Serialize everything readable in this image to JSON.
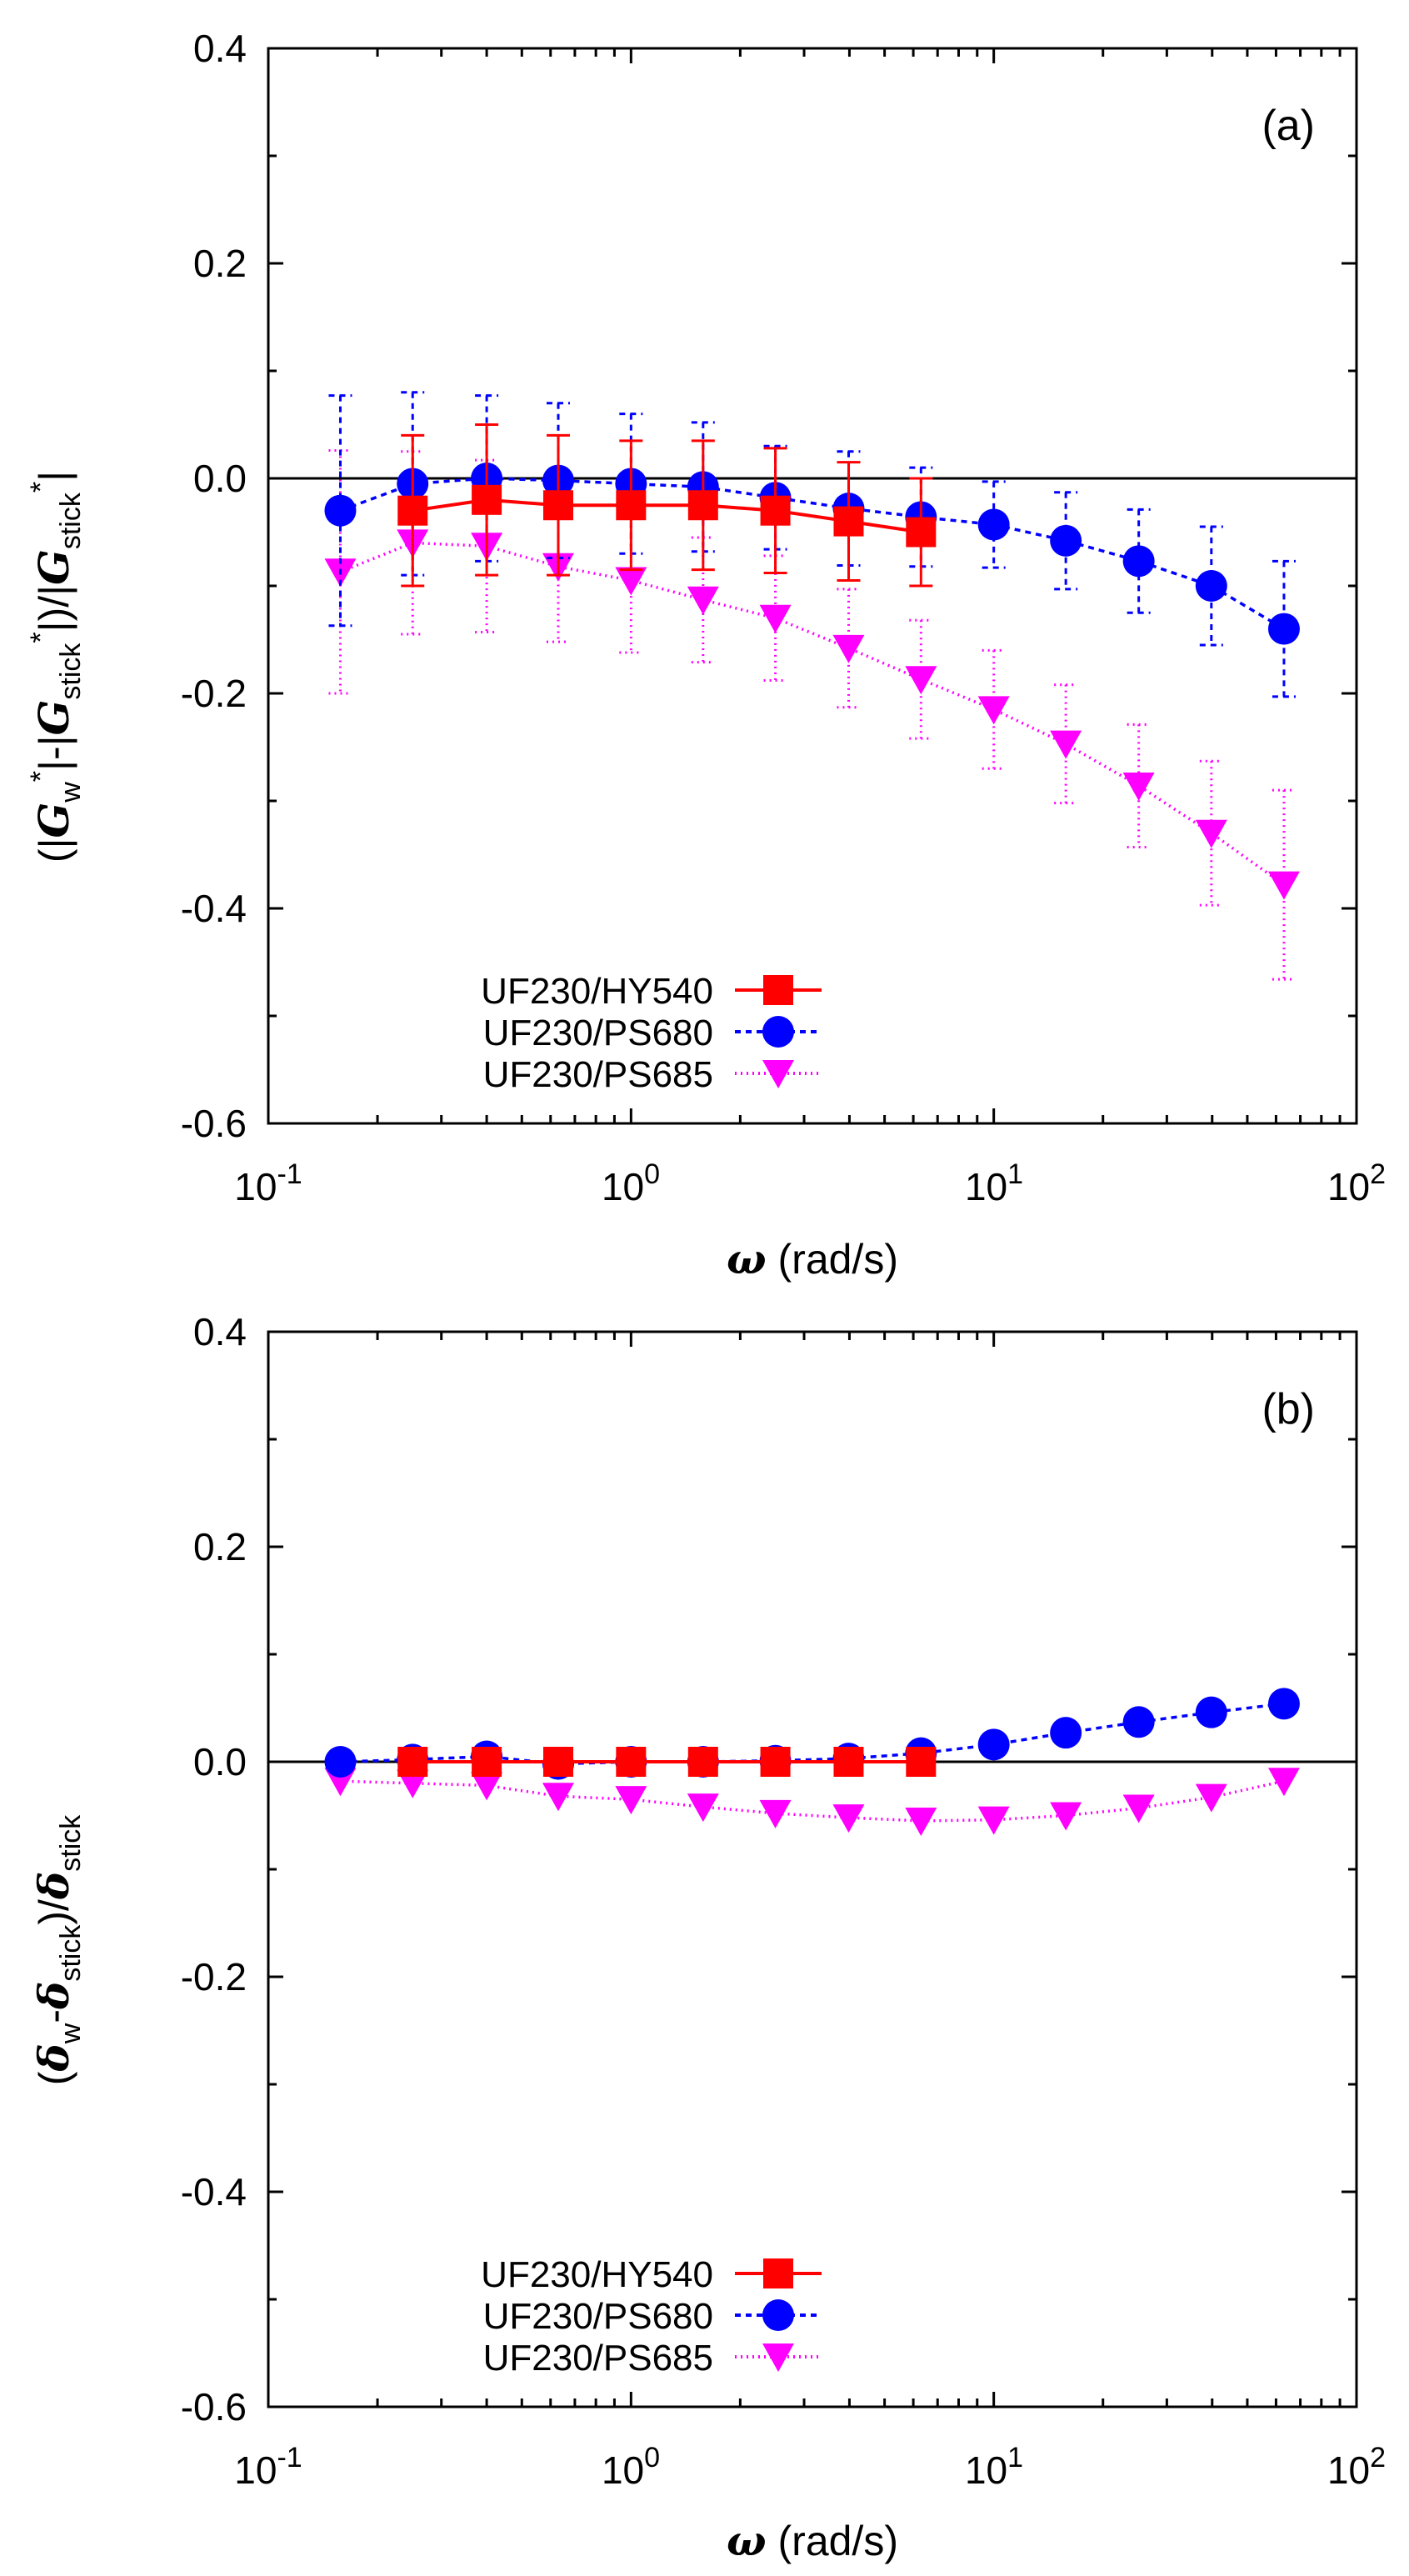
{
  "chart_data": [
    {
      "type": "scatter",
      "panel_label": "(a)",
      "xscale": "log",
      "xlim": [
        0.1,
        100
      ],
      "ylim": [
        -0.6,
        0.4
      ],
      "x_ticks": [
        "10",
        "10",
        "10",
        "10"
      ],
      "x_tick_exps": [
        "-1",
        "0",
        "1",
        "2"
      ],
      "y_ticks": [
        "0.4",
        "0.2",
        "0.0",
        "-0.2",
        "-0.4",
        "-0.6"
      ],
      "y_tick_values": [
        0.4,
        0.2,
        0.0,
        -0.2,
        -0.4,
        -0.6
      ],
      "xlabel_symbol": "ω",
      "xlabel_unit": " (rad/s)",
      "ylabel_parts": {
        "p1": "(|",
        "G1": "G",
        "sub1": "w",
        "sup1": "*",
        "p2": "|-|",
        "G2": "G",
        "sub2": "stick",
        "sup2": "*",
        "p3": "|)/|",
        "G3": "G",
        "sub3": "stick",
        "sup3": "*",
        "p4": "|"
      },
      "zero_line": 0,
      "legend_position": "bottom-left",
      "series": [
        {
          "name": "UF230/HY540",
          "color": "#ff0000",
          "marker": "square",
          "line": "solid",
          "x": [
            0.25,
            0.4,
            0.63,
            1.0,
            1.58,
            2.5,
            3.98,
            6.3
          ],
          "y": [
            -0.03,
            -0.02,
            -0.025,
            -0.025,
            -0.025,
            -0.03,
            -0.04,
            -0.05
          ],
          "err": [
            0.07,
            0.07,
            0.065,
            0.06,
            0.06,
            0.058,
            0.055,
            0.05
          ]
        },
        {
          "name": "UF230/PS680",
          "color": "#0000ff",
          "marker": "circle",
          "line": "dashed",
          "x": [
            0.158,
            0.25,
            0.4,
            0.63,
            1.0,
            1.58,
            2.5,
            3.98,
            6.3,
            10.0,
            15.8,
            25.1,
            39.8,
            63.1
          ],
          "y": [
            -0.03,
            -0.005,
            0.0,
            -0.002,
            -0.005,
            -0.008,
            -0.018,
            -0.028,
            -0.036,
            -0.043,
            -0.058,
            -0.077,
            -0.1,
            -0.14
          ],
          "err": [
            0.107,
            0.085,
            0.077,
            0.072,
            0.065,
            0.06,
            0.048,
            0.053,
            0.046,
            0.04,
            0.045,
            0.048,
            0.055,
            0.063
          ]
        },
        {
          "name": "UF230/PS685",
          "color": "#ff00ff",
          "marker": "triangle-down",
          "line": "dotted",
          "x": [
            0.158,
            0.25,
            0.4,
            0.63,
            1.0,
            1.58,
            2.5,
            3.98,
            6.3,
            10.0,
            15.8,
            25.1,
            39.8,
            63.1
          ],
          "y": [
            -0.087,
            -0.06,
            -0.063,
            -0.082,
            -0.095,
            -0.113,
            -0.13,
            -0.158,
            -0.187,
            -0.215,
            -0.247,
            -0.286,
            -0.33,
            -0.378
          ],
          "err": [
            0.113,
            0.085,
            0.08,
            0.07,
            0.067,
            0.058,
            0.058,
            0.055,
            0.055,
            0.055,
            0.055,
            0.057,
            0.067,
            0.088
          ]
        }
      ]
    },
    {
      "type": "scatter",
      "panel_label": "(b)",
      "xscale": "log",
      "xlim": [
        0.1,
        100
      ],
      "ylim": [
        -0.6,
        0.4
      ],
      "x_ticks": [
        "10",
        "10",
        "10",
        "10"
      ],
      "x_tick_exps": [
        "-1",
        "0",
        "1",
        "2"
      ],
      "y_ticks": [
        "0.4",
        "0.2",
        "0.0",
        "-0.2",
        "-0.4",
        "-0.6"
      ],
      "y_tick_values": [
        0.4,
        0.2,
        0.0,
        -0.2,
        -0.4,
        -0.6
      ],
      "xlabel_symbol": "ω",
      "xlabel_unit": " (rad/s)",
      "ylabel_parts": {
        "p1": "(",
        "d1": "δ",
        "sub1": "w",
        "p2": "-",
        "d2": "δ",
        "sub2": "stick",
        "p3": ")/",
        "d3": "δ",
        "sub3": "stick"
      },
      "zero_line": 0,
      "legend_position": "bottom-left",
      "series": [
        {
          "name": "UF230/HY540",
          "color": "#ff0000",
          "marker": "square",
          "line": "solid",
          "x": [
            0.25,
            0.4,
            0.63,
            1.0,
            1.58,
            2.5,
            3.98,
            6.3
          ],
          "y": [
            0.0,
            0.0,
            0.0,
            0.0,
            0.0,
            0.0,
            0.0,
            0.0
          ]
        },
        {
          "name": "UF230/PS680",
          "color": "#0000ff",
          "marker": "circle",
          "line": "dashed",
          "x": [
            0.158,
            0.25,
            0.4,
            0.63,
            1.0,
            1.58,
            2.5,
            3.98,
            6.3,
            10.0,
            15.8,
            25.1,
            39.8,
            63.1
          ],
          "y": [
            0.0,
            0.002,
            0.005,
            -0.002,
            0.0,
            0.0,
            0.001,
            0.003,
            0.008,
            0.016,
            0.027,
            0.037,
            0.046,
            0.054
          ]
        },
        {
          "name": "UF230/PS685",
          "color": "#ff00ff",
          "marker": "triangle-down",
          "line": "dotted",
          "x": [
            0.158,
            0.25,
            0.4,
            0.63,
            1.0,
            1.58,
            2.5,
            3.98,
            6.3,
            10.0,
            15.8,
            25.1,
            39.8,
            63.1
          ],
          "y": [
            -0.018,
            -0.02,
            -0.022,
            -0.032,
            -0.035,
            -0.042,
            -0.048,
            -0.052,
            -0.055,
            -0.054,
            -0.05,
            -0.043,
            -0.033,
            -0.018
          ]
        }
      ]
    }
  ]
}
